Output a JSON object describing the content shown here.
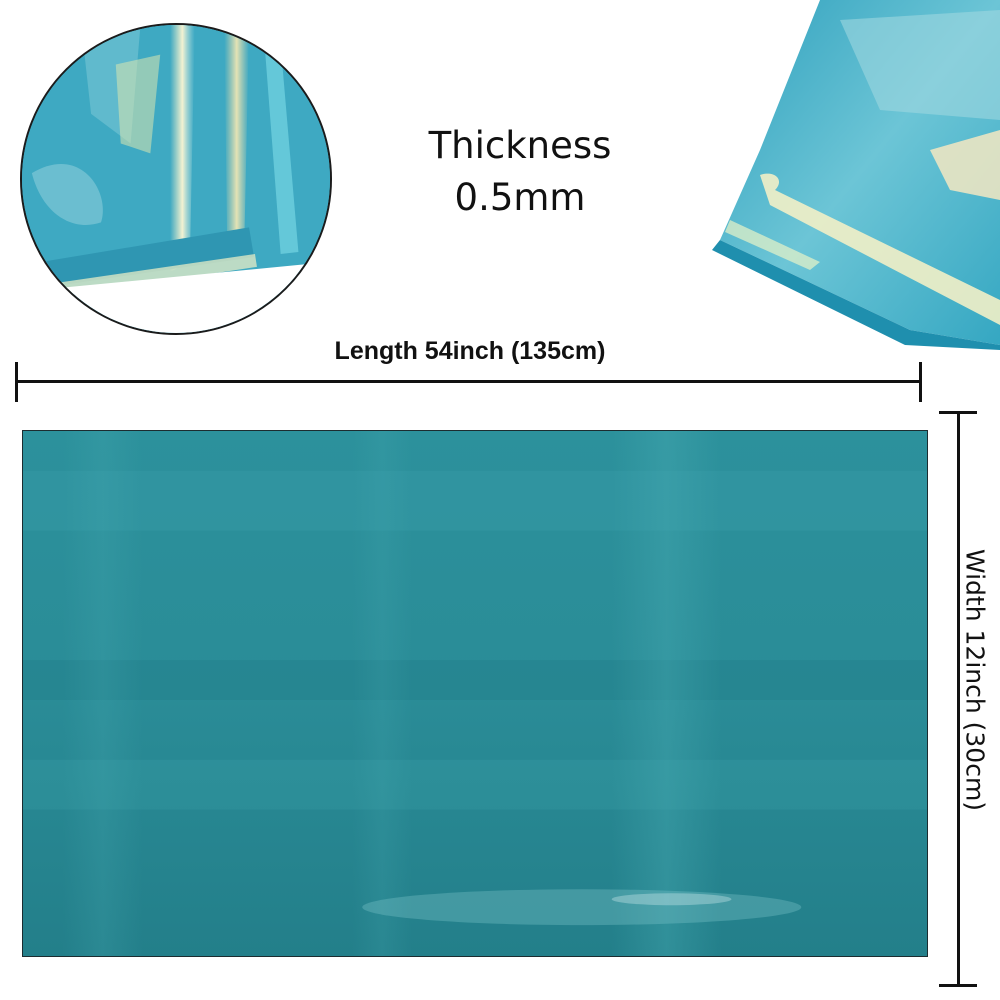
{
  "product": {
    "thickness_label": "Thickness",
    "thickness_value": "0.5mm",
    "length_label": "Length 54inch (135cm)",
    "width_label": "Width 12inch (30cm)"
  },
  "colors": {
    "sheet": "#2a8f9a",
    "sheet_light": "#3aa4ac",
    "iridescent_highlight": "#e9f2c0",
    "line": "#111111"
  },
  "icons": {
    "closeup": "circular-closeup-photo",
    "roll": "rolled-sheet-photo"
  }
}
